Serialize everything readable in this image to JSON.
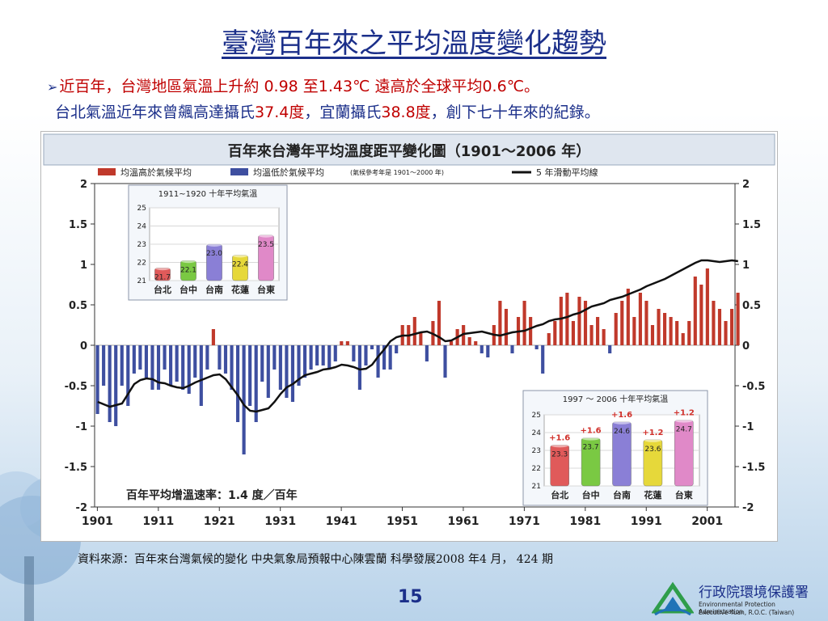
{
  "slide": {
    "title": "臺灣百年來之平均溫度變化趨勢",
    "line1": "近百年，台灣地區氣溫上升約 0.98 至1.43℃ 遠高於全球平均0.6℃。",
    "line2": {
      "part1": "台北氣溫近年來曾飆高達攝氏",
      "taipei_temp": "37.4",
      "part2": "度，宜蘭攝氏",
      "yilan_temp": "38.8",
      "part3": "度，創下七十年來的紀錄。"
    },
    "source": "資料來源：百年來台灣氣候的變化   中央氣象局預報中心陳雲蘭   科學發展2008 年4 月， 424 期",
    "page_number": "15",
    "agency": {
      "name": "行政院環境保護署",
      "en_line1": "Environmental Protection Administration",
      "en_line2": "Executive Yuan, R.O.C. (Taiwan)"
    }
  },
  "colors": {
    "above": "#c0392b",
    "below": "#3e4fa0",
    "moving_avg": "#111111",
    "title_blue": "#1b2f8a",
    "accent_red": "#c00000"
  },
  "chart_data": [
    {
      "type": "bar",
      "title": "百年來台灣年平均溫度距平變化圖（1901～2006 年）",
      "legend": {
        "above": "均溫高於氣候平均",
        "below": "均溫低於氣候平均",
        "note": "(氣候參考年是 1901～2000 年)",
        "line": "5 年滑動平均線"
      },
      "legend_position": "top",
      "annotation": "百年平均增溫速率：1.4 度／百年",
      "x_ticks": [
        "1901",
        "1911",
        "1921",
        "1931",
        "1941",
        "1951",
        "1961",
        "1971",
        "1981",
        "1991",
        "2001"
      ],
      "y_ticks": [
        "2",
        "1.5",
        "1",
        "0.5",
        "0",
        "-0.5",
        "-1",
        "-1.5",
        "-2"
      ],
      "ylim": [
        -2,
        2
      ],
      "xlim": [
        1901,
        2006
      ],
      "grid": false,
      "years_start": 1901,
      "anomalies": [
        -0.85,
        -0.5,
        -0.95,
        -1.0,
        -0.5,
        -0.75,
        -0.35,
        -0.3,
        -0.4,
        -0.55,
        -0.55,
        -0.3,
        -0.5,
        -0.45,
        -0.55,
        -0.6,
        -0.4,
        -0.75,
        -0.3,
        0.2,
        -0.3,
        -0.35,
        -0.55,
        -0.95,
        -1.35,
        -0.75,
        -0.95,
        -0.45,
        -0.65,
        -0.3,
        -0.55,
        -0.65,
        -0.7,
        -0.5,
        -0.4,
        -0.3,
        -0.25,
        -0.25,
        -0.3,
        -0.2,
        0.05,
        0.05,
        -0.2,
        -0.55,
        -0.25,
        -0.05,
        -0.4,
        -0.3,
        -0.3,
        -0.1,
        0.25,
        0.25,
        0.35,
        0.15,
        -0.2,
        0.3,
        0.55,
        -0.4,
        0.05,
        0.2,
        0.25,
        0.1,
        0.05,
        -0.1,
        -0.15,
        0.25,
        0.55,
        0.45,
        -0.1,
        0.35,
        0.55,
        0.35,
        -0.05,
        -0.35,
        0.15,
        0.3,
        0.6,
        0.65,
        0.3,
        0.6,
        0.55,
        0.25,
        0.35,
        0.2,
        -0.1,
        0.4,
        0.55,
        0.7,
        0.35,
        0.65,
        0.55,
        0.25,
        0.45,
        0.4,
        0.35,
        0.3,
        0.15,
        0.3,
        0.85,
        0.75,
        0.95,
        0.55,
        0.45,
        0.3,
        0.45,
        0.65
      ],
      "moving_average": [
        -0.7,
        -0.73,
        -0.76,
        -0.74,
        -0.72,
        -0.6,
        -0.48,
        -0.43,
        -0.41,
        -0.42,
        -0.46,
        -0.47,
        -0.5,
        -0.52,
        -0.53,
        -0.5,
        -0.46,
        -0.43,
        -0.4,
        -0.37,
        -0.36,
        -0.42,
        -0.52,
        -0.62,
        -0.74,
        -0.81,
        -0.82,
        -0.8,
        -0.78,
        -0.7,
        -0.6,
        -0.52,
        -0.48,
        -0.42,
        -0.37,
        -0.35,
        -0.33,
        -0.3,
        -0.29,
        -0.27,
        -0.24,
        -0.25,
        -0.27,
        -0.3,
        -0.29,
        -0.24,
        -0.14,
        -0.05,
        0.05,
        0.1,
        0.12,
        0.12,
        0.14,
        0.16,
        0.17,
        0.14,
        0.1,
        0.05,
        0.06,
        0.1,
        0.14,
        0.15,
        0.16,
        0.17,
        0.15,
        0.13,
        0.12,
        0.14,
        0.16,
        0.17,
        0.18,
        0.21,
        0.24,
        0.26,
        0.3,
        0.32,
        0.33,
        0.35,
        0.38,
        0.4,
        0.44,
        0.48,
        0.5,
        0.52,
        0.56,
        0.58,
        0.6,
        0.63,
        0.66,
        0.69,
        0.73,
        0.76,
        0.79,
        0.82,
        0.86,
        0.9,
        0.94,
        0.98,
        1.02,
        1.05,
        1.05,
        1.04,
        1.03,
        1.04,
        1.05,
        1.04
      ]
    },
    {
      "type": "bar",
      "title": "1911~1920 十年平均氣溫",
      "categories": [
        "台北",
        "台中",
        "台南",
        "花蓮",
        "台東"
      ],
      "values": [
        21.7,
        22.1,
        23.0,
        22.4,
        23.5
      ],
      "value_labels": [
        "21.7",
        "22.1",
        "23.0",
        "22.4",
        "23.5"
      ],
      "y_ticks": [
        "25",
        "24",
        "23",
        "22",
        "21"
      ],
      "ylim": [
        21,
        25
      ],
      "bar_colors": [
        "#e05a5a",
        "#7ac943",
        "#8a7fd6",
        "#e6d83a",
        "#e089c8"
      ]
    },
    {
      "type": "bar",
      "title": "1997 ～ 2006 十年平均氣溫",
      "categories": [
        "台北",
        "台中",
        "台南",
        "花蓮",
        "台東"
      ],
      "values": [
        23.3,
        23.7,
        24.6,
        23.6,
        24.7
      ],
      "value_labels": [
        "23.3",
        "23.7",
        "24.6",
        "23.6",
        "24.7"
      ],
      "increase_labels": [
        "+1.6",
        "+1.6",
        "+1.6",
        "+1.2",
        "+1.2"
      ],
      "y_ticks": [
        "25",
        "24",
        "23",
        "22",
        "21"
      ],
      "ylim": [
        21,
        25
      ],
      "bar_colors": [
        "#e05a5a",
        "#7ac943",
        "#8a7fd6",
        "#e6d83a",
        "#e089c8"
      ]
    }
  ]
}
